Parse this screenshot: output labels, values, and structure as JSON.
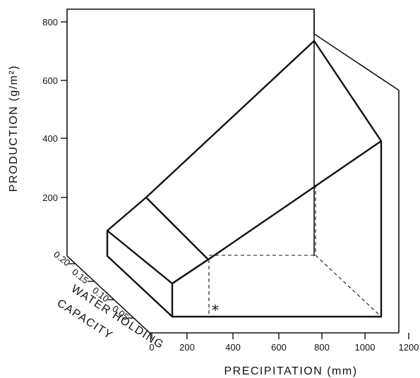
{
  "chart_data": {
    "type": "3d-surface",
    "title": "",
    "ylabel": "PRODUCTION (g/m²)",
    "xlabel": "PRECIPITATION (mm)",
    "zlabel": "WATER HOLDING CAPACITY",
    "zlabel_lines": [
      "WATER HOLDING",
      "CAPACITY"
    ],
    "y_ticks": [
      200,
      400,
      600,
      800
    ],
    "x_ticks": [
      0,
      200,
      400,
      600,
      800,
      1000,
      1200
    ],
    "z_ticks": [
      "0.05",
      "0.10",
      "0.15",
      "0.20"
    ],
    "xlim": [
      0,
      1200
    ],
    "ylim": [
      0,
      850
    ],
    "zlim": [
      0,
      0.22
    ],
    "marker": "*",
    "surface": {
      "edges": [
        {
          "precip": 100,
          "whc": 0.0,
          "production": 0
        },
        {
          "precip": 100,
          "whc": 0.2,
          "production": 0
        },
        {
          "precip": 100,
          "whc": 0.0,
          "production": 100
        },
        {
          "precip": 100,
          "whc": 0.2,
          "production": 100
        },
        {
          "precip": 300,
          "whc": 0.0,
          "production": 100
        },
        {
          "precip": 300,
          "whc": 0.2,
          "production": 200
        },
        {
          "precip": 1100,
          "whc": 0.0,
          "production": 400
        },
        {
          "precip": 1100,
          "whc": 0.2,
          "production": 850
        },
        {
          "precip": 1100,
          "whc": 0.0,
          "production": 0
        }
      ]
    }
  }
}
